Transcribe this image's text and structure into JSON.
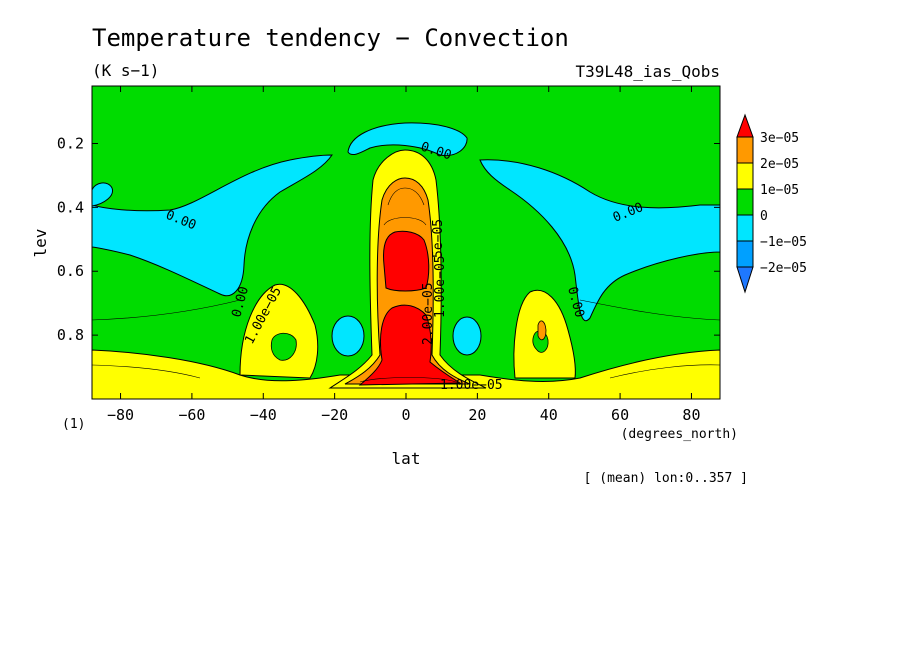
{
  "chart_data": {
    "type": "contour",
    "title": "Temperature tendency − Convection",
    "units": "(K s−1)",
    "experiment": "T39L48_ias_Qobs",
    "xlabel": "lat",
    "xunits": "(degrees_north)",
    "ylabel": "lev",
    "yunits": "(1)",
    "note": "[ (mean) lon:0..357 ]",
    "xlim": [
      -88,
      88
    ],
    "ylim": [
      1.0,
      0.02
    ],
    "x_ticks": [
      -80,
      -60,
      -40,
      -20,
      0,
      20,
      40,
      60,
      80
    ],
    "x_tick_labels": [
      "−80",
      "−60",
      "−40",
      "−20",
      "0",
      "20",
      "40",
      "60",
      "80"
    ],
    "y_ticks": [
      0.2,
      0.4,
      0.6,
      0.8
    ],
    "y_tick_labels": [
      "0.2",
      "0.4",
      "0.6",
      "0.8"
    ],
    "colorbar": {
      "levels": [
        -2e-05,
        -1e-05,
        0,
        1e-05,
        2e-05,
        3e-05
      ],
      "labels": [
        "3e−05",
        "2e−05",
        "1e−05",
        "0",
        "−1e−05",
        "−2e−05"
      ],
      "colors": {
        "below_m2e5": "#1e78ff",
        "m2e5_m1e5": "#00a0ff",
        "m1e5_0": "#00e6ff",
        "0_1e5": "#00dc00",
        "1e5_2e5": "#ffff00",
        "2e5_3e5": "#ff9900",
        "above_3e5": "#ff0000"
      }
    },
    "contour_labels": [
      "0.00",
      "0.00",
      "0.00",
      "0.00",
      "0.00",
      "1.00e−05",
      "2.00e−05",
      "1.00e−05",
      "5e−05",
      "1.00e−05"
    ]
  }
}
